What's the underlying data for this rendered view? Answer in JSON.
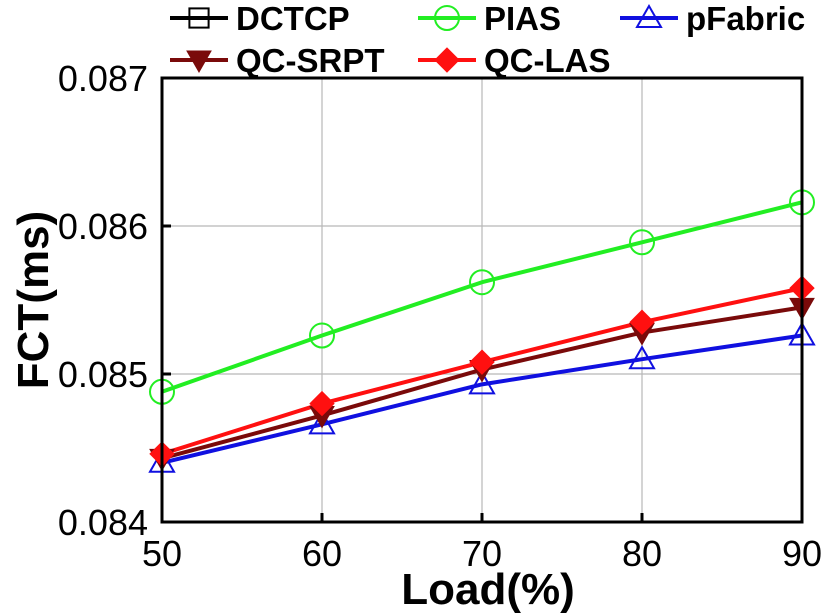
{
  "chart_data": {
    "type": "line",
    "title": "",
    "xlabel": "Load(%)",
    "ylabel": "FCT(ms)",
    "x": [
      50,
      60,
      70,
      80,
      90
    ],
    "xlim": [
      50,
      90
    ],
    "ylim": [
      0.084,
      0.087
    ],
    "x_ticks": [
      50,
      60,
      70,
      80,
      90
    ],
    "y_ticks": [
      0.084,
      0.085,
      0.086,
      0.087
    ],
    "x_tick_labels": [
      "50",
      "60",
      "70",
      "80",
      "90"
    ],
    "y_tick_labels": [
      "0.084",
      "0.085",
      "0.086",
      "0.087"
    ],
    "grid": true,
    "legend_placement": "top",
    "series": [
      {
        "name": "DCTCP",
        "color": "#000000",
        "marker": "square",
        "values": [
          null,
          null,
          null,
          null,
          null
        ]
      },
      {
        "name": "PIAS",
        "color": "#22ee22",
        "marker": "circle",
        "values": [
          0.08488,
          0.08526,
          0.08562,
          0.08589,
          0.08616
        ]
      },
      {
        "name": "pFabric",
        "color": "#1010e0",
        "marker": "triangle-up",
        "values": [
          0.0844,
          0.08466,
          0.08493,
          0.0851,
          0.08526
        ]
      },
      {
        "name": "QC-SRPT",
        "color": "#7a0a0a",
        "marker": "triangle-down",
        "values": [
          0.08443,
          0.08472,
          0.08503,
          0.08528,
          0.08545
        ]
      },
      {
        "name": "QC-LAS",
        "color": "#ff1010",
        "marker": "diamond",
        "values": [
          0.08446,
          0.0848,
          0.08508,
          0.08535,
          0.08558
        ]
      }
    ]
  }
}
